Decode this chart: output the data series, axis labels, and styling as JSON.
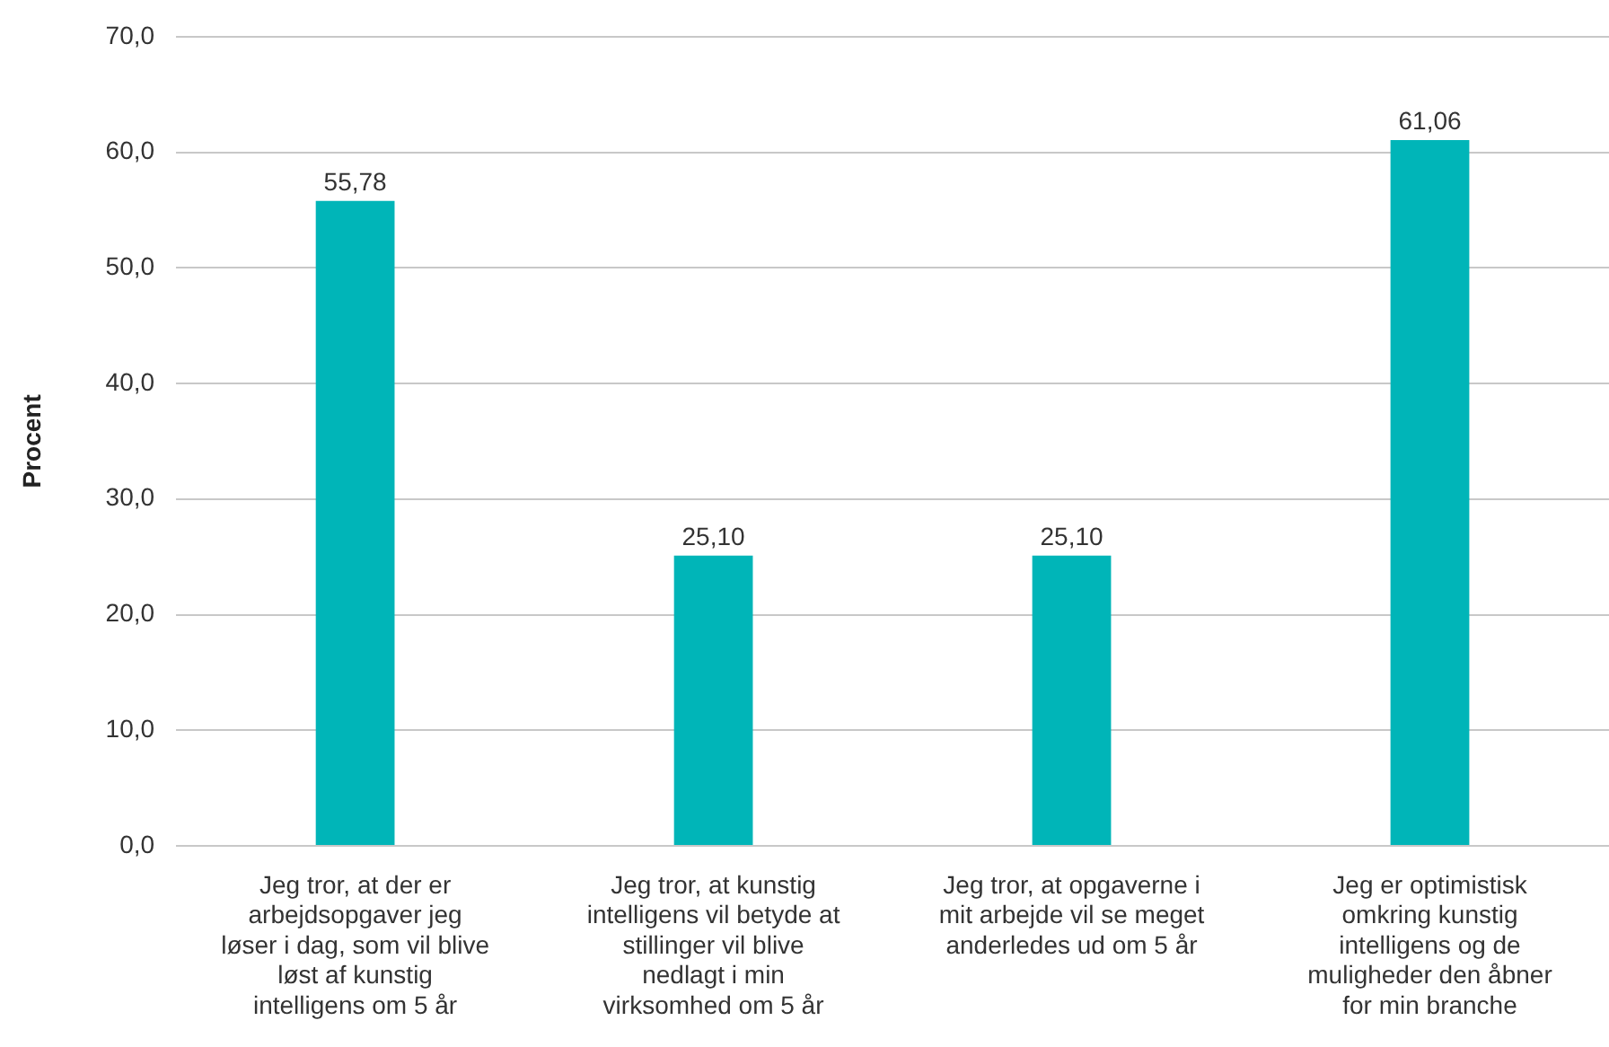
{
  "chart_data": {
    "type": "bar",
    "ylabel": "Procent",
    "categories": [
      "Jeg tror, at der er arbejdsopgaver jeg løser i dag, som vil blive løst af kunstig intelligens om 5 år",
      "Jeg tror, at kunstig intelligens vil betyde at stillinger vil blive nedlagt i min virksomhed om 5 år",
      "Jeg tror, at opgaverne i mit arbejde vil se meget anderledes ud om 5 år",
      "Jeg er optimistisk omkring kunstig intelligens og de muligheder den åbner for min branche"
    ],
    "values": [
      55.78,
      25.1,
      25.1,
      61.06
    ],
    "value_labels": [
      "55,78",
      "25,10",
      "25,10",
      "61,06"
    ],
    "color": "#00b5b8",
    "ylim": [
      0,
      70
    ],
    "yticks": [
      {
        "value": 0,
        "label": "0,0"
      },
      {
        "value": 10,
        "label": "10,0"
      },
      {
        "value": 20,
        "label": "20,0"
      },
      {
        "value": 30,
        "label": "30,0"
      },
      {
        "value": 40,
        "label": "40,0"
      },
      {
        "value": 50,
        "label": "50,0"
      },
      {
        "value": 60,
        "label": "60,0"
      },
      {
        "value": 70,
        "label": "70,0"
      }
    ],
    "grid": "y",
    "legend": false
  }
}
